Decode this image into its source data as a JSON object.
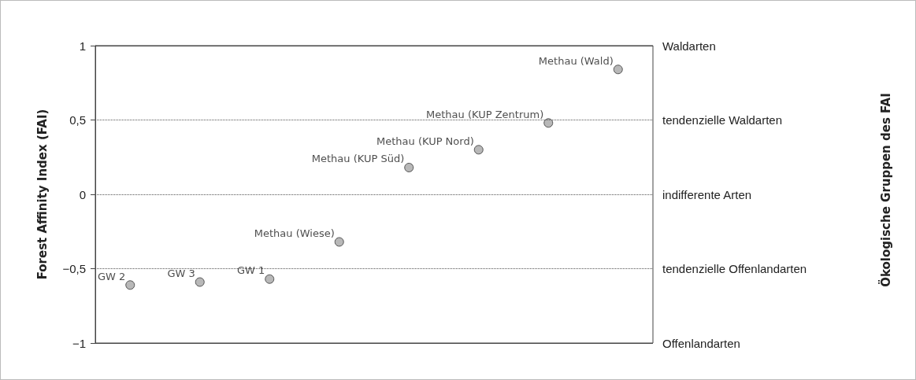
{
  "chart_data": {
    "type": "scatter",
    "categories": [
      null,
      null,
      null,
      null,
      null,
      null,
      null,
      null
    ],
    "values": [
      -0.61,
      -0.59,
      -0.57,
      -0.32,
      0.18,
      0.3,
      0.48,
      0.84
    ],
    "color": "#a6a6a6",
    "marker": "circle",
    "annotations": [
      "GW 2",
      "GW 3",
      "GW 1",
      "Methau (Wiese)",
      "Methau (KUP Süd)",
      "Methau (KUP Nord)",
      "Methau (KUP Zentrum)",
      "Methau (Wald)",
      "Ökologische Gruppen des FAI"
    ],
    "ylabel": "Forest Affinity Index (FAI)",
    "ylim": [
      -1,
      1
    ],
    "yticks": [
      {
        "value": -1,
        "label": "−1"
      },
      {
        "value": -0.5,
        "label": "−0,5"
      },
      0,
      {
        "value": 0.5,
        "label": "0,5"
      },
      1
    ],
    "ref_lines": [
      {
        "axis": "y",
        "value": 1,
        "label": "Waldarten"
      },
      {
        "axis": "y",
        "value": 0.5,
        "label": "tendenzielle Waldarten",
        "line_style": "dotted"
      },
      {
        "axis": "y",
        "value": 0,
        "label": "indifferente Arten",
        "line_style": "dotted"
      },
      {
        "axis": "y",
        "value": -0.5,
        "label": "tendenzielle Offenlandarten",
        "line_style": "dotted"
      },
      {
        "axis": "y",
        "value": -1,
        "label": "Offenlandarten"
      }
    ],
    "tick_labels": "y"
  }
}
